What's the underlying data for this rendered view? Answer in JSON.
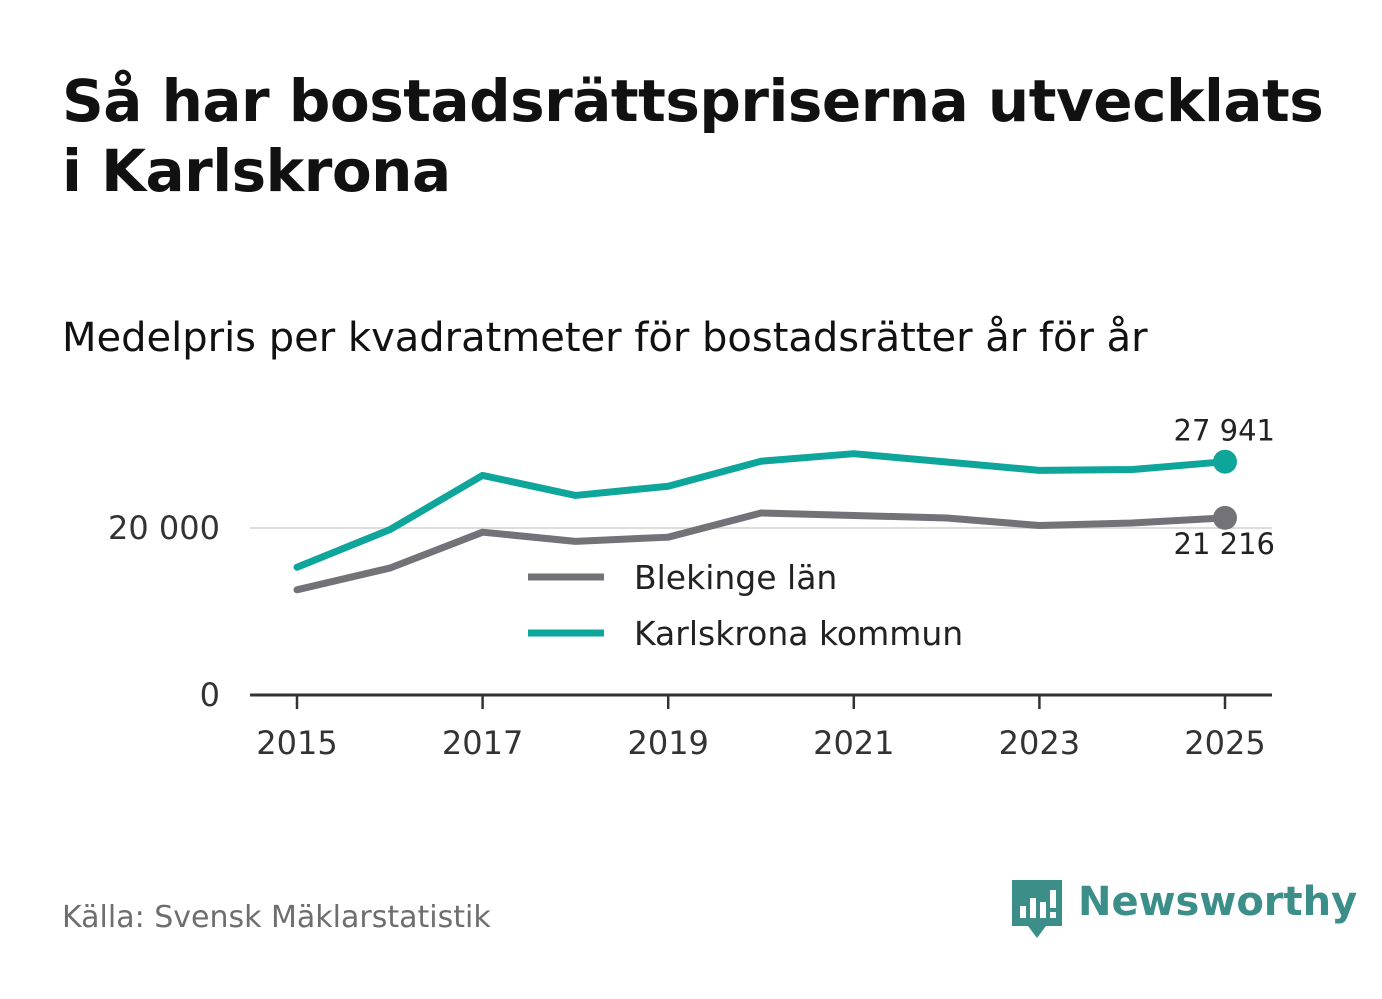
{
  "title": "Så har bostadsrättspriserna utvecklats i Karlskrona",
  "subtitle": "Medelpris per kvadratmeter för bostadsrätter år för år",
  "source": "Källa: Svensk Mäklarstatistik",
  "brand": {
    "name": "Newsworthy",
    "icon": "newsworthy-logo-icon",
    "color": "#3b8f88"
  },
  "chart_data": {
    "type": "line",
    "title": "Så har bostadsrättspriserna utvecklats i Karlskrona",
    "subtitle": "Medelpris per kvadratmeter för bostadsrätter år för år",
    "xlabel": "",
    "ylabel": "",
    "x": [
      2015,
      2016,
      2017,
      2018,
      2019,
      2020,
      2021,
      2022,
      2023,
      2024,
      2025
    ],
    "x_ticks": [
      2015,
      2017,
      2019,
      2021,
      2023,
      2025
    ],
    "x_tick_labels": [
      "2015",
      "2017",
      "2019",
      "2021",
      "2023",
      "2025"
    ],
    "xlim": [
      2014.5,
      2025.5
    ],
    "y_ticks": [
      0,
      20000
    ],
    "y_tick_labels": [
      "0",
      "20 000"
    ],
    "ylim": [
      0,
      30000
    ],
    "grid": "horizontal",
    "legend_position": "center",
    "series": [
      {
        "name": "Blekinge län",
        "color": "#737278",
        "values": [
          12600,
          15200,
          19500,
          18400,
          18900,
          21800,
          21500,
          21200,
          20300,
          20600,
          21216
        ],
        "end_label": "21 216",
        "end_label_position": "below"
      },
      {
        "name": "Karlskrona kommun",
        "color": "#0ea59a",
        "values": [
          15300,
          19800,
          26300,
          23900,
          25000,
          28000,
          28900,
          27900,
          26900,
          27000,
          27941
        ],
        "end_label": "27 941",
        "end_label_position": "above"
      }
    ]
  }
}
